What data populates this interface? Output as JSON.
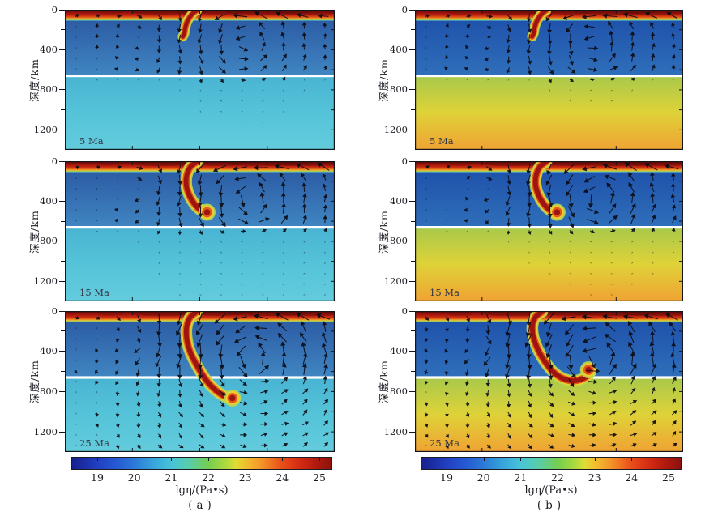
{
  "figure": {
    "ylabel": "深度/km",
    "ytick_labels": [
      "0",
      "400",
      "800",
      "1200"
    ],
    "time_labels": [
      "5 Ma",
      "15 Ma",
      "25 Ma"
    ],
    "captions": {
      "a": "(a)",
      "b": "(b)"
    },
    "colorbar_label": "lgη/(Pa•s)",
    "colorbar_tick_labels": [
      "19",
      "20",
      "21",
      "22",
      "23",
      "24",
      "25"
    ]
  },
  "chart_data": {
    "type": "heatmap",
    "description": "Six-panel 2D geodynamic subduction simulation snapshots: viscosity field lgη/(Pa·s) with velocity arrows, at 5, 15 and 25 Ma, for model (a) weak lower mantle and model (b) strong lower mantle. White line marks the 660 km discontinuity; red curved body is the high-viscosity subducting slab.",
    "depth_axis": {
      "label": "深度/km",
      "ticks_km": [
        0,
        400,
        800,
        1200
      ],
      "minor_ticks_km": [
        200,
        600,
        1000
      ],
      "range_km": [
        0,
        1400
      ],
      "discontinuity_km": 660
    },
    "time_steps_ma": [
      5,
      15,
      25
    ],
    "colorbar": {
      "label": "lgη/(Pa•s)",
      "tick_values": [
        19,
        20,
        21,
        22,
        23,
        24,
        25
      ],
      "value_range": [
        18.3,
        25.35
      ],
      "gradient_stops": [
        [
          0,
          "#171f8e"
        ],
        [
          0.099,
          "#2140c1"
        ],
        [
          0.17,
          "#2659d4"
        ],
        [
          0.241,
          "#2b7ad8"
        ],
        [
          0.31,
          "#36a3da"
        ],
        [
          0.383,
          "#47c4d8"
        ],
        [
          0.45,
          "#58cdab"
        ],
        [
          0.525,
          "#74ce50"
        ],
        [
          0.59,
          "#abd93f"
        ],
        [
          0.63,
          "#dedd35"
        ],
        [
          0.667,
          "#f0c02f"
        ],
        [
          0.72,
          "#f39d2a"
        ],
        [
          0.77,
          "#ef7120"
        ],
        [
          0.808,
          "#e84f1a"
        ],
        [
          0.87,
          "#d92e14"
        ],
        [
          0.93,
          "#b81c0f"
        ],
        [
          1,
          "#8c120d"
        ]
      ]
    },
    "columns": {
      "a": {
        "caption": "(a)",
        "upper_mantle": [
          "#28549f",
          "#4086c2"
        ],
        "lower_mantle": [
          "#49b4d3",
          "#55c3d8",
          "#63ccdd"
        ]
      },
      "b": {
        "caption": "(b)",
        "upper_mantle": [
          "#1c4da8",
          "#2f6fba"
        ],
        "lower_mantle": [
          "#a8c94b",
          "#dfd238",
          "#f0a233"
        ]
      }
    },
    "lithosphere": {
      "band_depth_km": 110,
      "gradient": [
        [
          0,
          "#700d0a"
        ],
        [
          0.3,
          "#9e140e"
        ],
        [
          0.52,
          "#c92b12"
        ],
        [
          0.68,
          "#e55d17"
        ],
        [
          0.8,
          "#eeb42c"
        ],
        [
          0.88,
          "#b8cf3e"
        ],
        [
          0.95,
          "#58b3c8"
        ],
        [
          1,
          "#3a6fb0"
        ]
      ],
      "mottle": [
        [
          0.17,
          16,
          0.22
        ],
        [
          0.36,
          38,
          0.45
        ],
        [
          0.47,
          18,
          0.3
        ],
        [
          0.58,
          26,
          0.4
        ],
        [
          0.75,
          52,
          0.45
        ],
        [
          0.9,
          42,
          0.4
        ]
      ]
    },
    "slab_colors": {
      "halo": "#b9d94f",
      "yellow": "#f0cc2e",
      "orange": "#e2591b",
      "core": "#9e1410"
    },
    "boundary_color": "#ffffff",
    "arrow_color": "#0c0c16",
    "panels": [
      {
        "id": "a0",
        "col": "a",
        "row": 0,
        "time_label": "5 Ma",
        "trench": 0.46,
        "slab_scale": 0.85,
        "slab": [
          [
            0.49,
            6
          ],
          [
            0.473,
            40
          ],
          [
            0.457,
            100
          ],
          [
            0.447,
            170
          ],
          [
            0.443,
            235
          ],
          [
            0.437,
            268
          ]
        ],
        "blob": null,
        "arrows": {
          "A": 8,
          "lm": 0.1,
          "sigma": 105,
          "cellDX": 0.2,
          "cellDepth": 330,
          "seed": 1
        }
      },
      {
        "id": "a1",
        "col": "a",
        "row": 1,
        "time_label": "15 Ma",
        "trench": 0.46,
        "slab_scale": 1,
        "slab": [
          [
            0.49,
            6
          ],
          [
            0.466,
            55
          ],
          [
            0.452,
            140
          ],
          [
            0.45,
            240
          ],
          [
            0.462,
            345
          ],
          [
            0.484,
            440
          ],
          [
            0.505,
            492
          ],
          [
            0.522,
            512
          ]
        ],
        "blob": [
          0.527,
          510
        ],
        "arrows": {
          "A": 10,
          "lm": 0.13,
          "sigma": 125,
          "cellDX": 0.22,
          "cellDepth": 380,
          "seed": 2
        }
      },
      {
        "id": "a2",
        "col": "a",
        "row": 2,
        "time_label": "25 Ma",
        "trench": 0.46,
        "slab_scale": 1,
        "slab": [
          [
            0.49,
            6
          ],
          [
            0.465,
            60
          ],
          [
            0.452,
            150
          ],
          [
            0.451,
            260
          ],
          [
            0.461,
            380
          ],
          [
            0.481,
            500
          ],
          [
            0.507,
            620
          ],
          [
            0.534,
            720
          ],
          [
            0.565,
            800
          ],
          [
            0.597,
            852
          ],
          [
            0.617,
            866
          ]
        ],
        "blob": [
          0.621,
          864
        ],
        "arrows": {
          "A": 11.5,
          "lm": 0.55,
          "sigma": 190,
          "cellDX": 0.24,
          "cellDepth": 470,
          "seed": 3
        }
      },
      {
        "id": "b0",
        "col": "b",
        "row": 0,
        "time_label": "5 Ma",
        "trench": 0.46,
        "slab_scale": 0.85,
        "slab": [
          [
            0.49,
            6
          ],
          [
            0.473,
            40
          ],
          [
            0.457,
            100
          ],
          [
            0.447,
            170
          ],
          [
            0.443,
            235
          ],
          [
            0.437,
            268
          ]
        ],
        "blob": null,
        "arrows": {
          "A": 9,
          "lm": 0.06,
          "sigma": 105,
          "cellDX": 0.2,
          "cellDepth": 330,
          "seed": 4
        }
      },
      {
        "id": "b1",
        "col": "b",
        "row": 1,
        "time_label": "15 Ma",
        "trench": 0.46,
        "slab_scale": 1,
        "slab": [
          [
            0.49,
            6
          ],
          [
            0.466,
            55
          ],
          [
            0.452,
            140
          ],
          [
            0.45,
            240
          ],
          [
            0.462,
            345
          ],
          [
            0.484,
            440
          ],
          [
            0.505,
            492
          ],
          [
            0.524,
            512
          ]
        ],
        "blob": [
          0.53,
          510
        ],
        "arrows": {
          "A": 11,
          "lm": 0.07,
          "sigma": 125,
          "cellDX": 0.22,
          "cellDepth": 380,
          "seed": 5
        }
      },
      {
        "id": "b2",
        "col": "b",
        "row": 2,
        "time_label": "25 Ma",
        "trench": 0.445,
        "slab_scale": 1,
        "slab": [
          [
            0.475,
            6
          ],
          [
            0.449,
            60
          ],
          [
            0.438,
            150
          ],
          [
            0.442,
            260
          ],
          [
            0.46,
            390
          ],
          [
            0.488,
            515
          ],
          [
            0.52,
            615
          ],
          [
            0.557,
            676
          ],
          [
            0.597,
            692
          ],
          [
            0.633,
            662
          ],
          [
            0.652,
            615
          ],
          [
            0.65,
            588
          ]
        ],
        "blob": [
          0.647,
          583
        ],
        "arrows": {
          "A": 12.5,
          "lm": 0.5,
          "sigma": 200,
          "cellDX": 0.22,
          "cellDepth": 470,
          "seed": 6
        }
      }
    ]
  }
}
